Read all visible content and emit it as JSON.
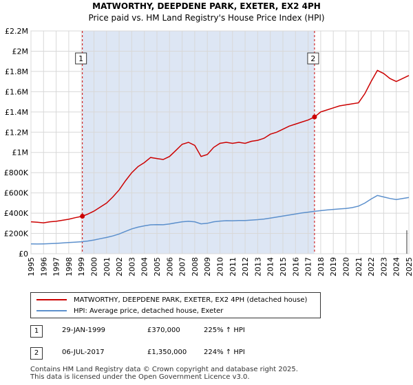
{
  "chart_data": {
    "type": "line",
    "title": "MATWORTHY, DEEPDENE PARK, EXETER, EX2 4PH",
    "subtitle": "Price paid vs. HM Land Registry's House Price Index (HPI)",
    "xlim": [
      1995,
      2025
    ],
    "ylim": [
      0,
      2200000
    ],
    "y_ticks": [
      {
        "value": 0,
        "label": "£0"
      },
      {
        "value": 200000,
        "label": "£200K"
      },
      {
        "value": 400000,
        "label": "£400K"
      },
      {
        "value": 600000,
        "label": "£600K"
      },
      {
        "value": 800000,
        "label": "£800K"
      },
      {
        "value": 1000000,
        "label": "£1M"
      },
      {
        "value": 1200000,
        "label": "£1.2M"
      },
      {
        "value": 1400000,
        "label": "£1.4M"
      },
      {
        "value": 1600000,
        "label": "£1.6M"
      },
      {
        "value": 1800000,
        "label": "£1.8M"
      },
      {
        "value": 2000000,
        "label": "£2M"
      },
      {
        "value": 2200000,
        "label": "£2.2M"
      }
    ],
    "x_ticks": [
      "1995",
      "1996",
      "1997",
      "1998",
      "1999",
      "2000",
      "2001",
      "2002",
      "2003",
      "2004",
      "2005",
      "2006",
      "2007",
      "2008",
      "2009",
      "2010",
      "2011",
      "2012",
      "2013",
      "2014",
      "2015",
      "2016",
      "2017",
      "2018",
      "2019",
      "2020",
      "2021",
      "2022",
      "2023",
      "2024",
      "2025"
    ],
    "grid": true,
    "legend_position": "below",
    "colors": {
      "property": "#cc0000",
      "hpi": "#5b8fcc",
      "shade": "#dde6f4",
      "marker_line": "#cc0000"
    },
    "series": [
      {
        "name": "MATWORTHY, DEEPDENE PARK, EXETER, EX2 4PH (detached house)",
        "color": "#cc0000",
        "x": [
          1995.0,
          1995.5,
          1996.0,
          1996.5,
          1997.0,
          1997.5,
          1998.0,
          1998.5,
          1999.08,
          1999.5,
          2000.0,
          2000.5,
          2001.0,
          2001.5,
          2002.0,
          2002.5,
          2003.0,
          2003.5,
          2004.0,
          2004.5,
          2005.0,
          2005.5,
          2006.0,
          2006.5,
          2007.0,
          2007.5,
          2008.0,
          2008.5,
          2009.0,
          2009.5,
          2010.0,
          2010.5,
          2011.0,
          2011.5,
          2012.0,
          2012.5,
          2013.0,
          2013.5,
          2014.0,
          2014.5,
          2015.0,
          2015.5,
          2016.0,
          2016.5,
          2017.0,
          2017.51,
          2018.0,
          2018.5,
          2019.0,
          2019.5,
          2020.0,
          2020.5,
          2021.0,
          2021.5,
          2022.0,
          2022.5,
          2023.0,
          2023.5,
          2024.0,
          2024.5,
          2025.0
        ],
        "values": [
          315000,
          310000,
          305000,
          315000,
          320000,
          330000,
          340000,
          355000,
          370000,
          390000,
          420000,
          460000,
          500000,
          560000,
          630000,
          720000,
          800000,
          860000,
          900000,
          950000,
          940000,
          930000,
          960000,
          1020000,
          1080000,
          1100000,
          1070000,
          960000,
          980000,
          1050000,
          1090000,
          1100000,
          1090000,
          1100000,
          1090000,
          1110000,
          1120000,
          1140000,
          1180000,
          1200000,
          1230000,
          1260000,
          1280000,
          1300000,
          1320000,
          1350000,
          1400000,
          1420000,
          1440000,
          1460000,
          1470000,
          1480000,
          1490000,
          1580000,
          1700000,
          1810000,
          1780000,
          1730000,
          1700000,
          1730000,
          1760000
        ]
      },
      {
        "name": "HPI: Average price, detached house, Exeter",
        "color": "#5b8fcc",
        "x": [
          1995.0,
          1995.5,
          1996.0,
          1996.5,
          1997.0,
          1997.5,
          1998.0,
          1998.5,
          1999.0,
          1999.5,
          2000.0,
          2000.5,
          2001.0,
          2001.5,
          2002.0,
          2002.5,
          2003.0,
          2003.5,
          2004.0,
          2004.5,
          2005.0,
          2005.5,
          2006.0,
          2006.5,
          2007.0,
          2007.5,
          2008.0,
          2008.5,
          2009.0,
          2009.5,
          2010.0,
          2010.5,
          2011.0,
          2011.5,
          2012.0,
          2012.5,
          2013.0,
          2013.5,
          2014.0,
          2014.5,
          2015.0,
          2015.5,
          2016.0,
          2016.5,
          2017.0,
          2017.5,
          2018.0,
          2018.5,
          2019.0,
          2019.5,
          2020.0,
          2020.5,
          2021.0,
          2021.5,
          2022.0,
          2022.5,
          2023.0,
          2023.5,
          2024.0,
          2024.5,
          2025.0
        ],
        "values": [
          97000,
          96000,
          97000,
          99000,
          102000,
          106000,
          110000,
          114000,
          118000,
          125000,
          135000,
          148000,
          160000,
          175000,
          195000,
          220000,
          245000,
          262000,
          275000,
          285000,
          287000,
          286000,
          293000,
          305000,
          315000,
          320000,
          315000,
          295000,
          300000,
          315000,
          322000,
          326000,
          325000,
          328000,
          327000,
          332000,
          336000,
          342000,
          352000,
          362000,
          372000,
          382000,
          392000,
          402000,
          410000,
          418000,
          425000,
          432000,
          437000,
          442000,
          447000,
          455000,
          470000,
          500000,
          540000,
          575000,
          560000,
          545000,
          535000,
          545000,
          555000
        ]
      }
    ],
    "annotations": [
      {
        "label": "1",
        "x": 1999.08,
        "value": 370000
      },
      {
        "label": "2",
        "x": 2017.51,
        "value": 1350000
      }
    ]
  },
  "legend": {
    "property_label": "MATWORTHY, DEEPDENE PARK, EXETER, EX2 4PH (detached house)",
    "hpi_label": "HPI: Average price, detached house, Exeter"
  },
  "sales": [
    {
      "num": "1",
      "date": "29-JAN-1999",
      "price": "£370,000",
      "hpi": "225% ↑ HPI"
    },
    {
      "num": "2",
      "date": "06-JUL-2017",
      "price": "£1,350,000",
      "hpi": "224% ↑ HPI"
    }
  ],
  "footer": {
    "line1": "Contains HM Land Registry data © Crown copyright and database right 2025.",
    "line2": "This data is licensed under the Open Government Licence v3.0."
  }
}
